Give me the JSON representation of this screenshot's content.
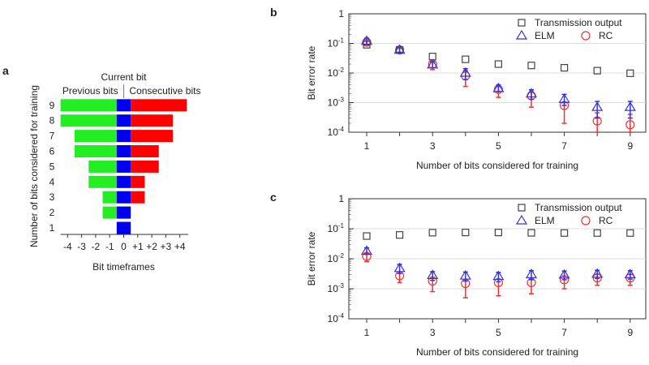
{
  "chart_data": [
    {
      "panel": "a",
      "type": "bar",
      "orientation": "horizontal-stacked",
      "header_center": "Current bit",
      "header_left": "Previous bits",
      "header_right": "Consecutive bits",
      "xlabel": "Bit timeframes",
      "ylabel": "Number of bits considered for training",
      "xticks": [
        "-4",
        "-3",
        "-2",
        "-1",
        "0",
        "+1",
        "+2",
        "+3",
        "+4"
      ],
      "categories": [
        "1",
        "2",
        "3",
        "4",
        "5",
        "6",
        "7",
        "8",
        "9"
      ],
      "previous_bits": [
        0,
        1,
        1,
        2,
        2,
        3,
        3,
        4,
        4
      ],
      "current_bit": [
        1,
        1,
        1,
        1,
        1,
        1,
        1,
        1,
        1
      ],
      "consecutive_bits": [
        0,
        0,
        1,
        1,
        2,
        2,
        3,
        3,
        4
      ],
      "colors": {
        "previous": "#22ee22",
        "current": "#0000ee",
        "consecutive": "#ff0000"
      }
    },
    {
      "panel": "b",
      "type": "scatter",
      "xlabel": "Number of bits considered for training",
      "ylabel": "Bit error rate",
      "yscale": "log",
      "ylim": [
        0.0001,
        1
      ],
      "yticks": [
        "10-4",
        "10-3",
        "10-2",
        "10-1",
        "1"
      ],
      "xticks": [
        "1",
        "3",
        "5",
        "7",
        "9"
      ],
      "x": [
        1,
        2,
        3,
        4,
        5,
        6,
        7,
        8,
        9
      ],
      "grid": "horizontal",
      "legend": "top-right",
      "series": [
        {
          "name": "Transmission output",
          "marker": "square",
          "color": "#444444",
          "values": [
            0.09,
            0.06,
            0.036,
            0.029,
            0.02,
            0.018,
            0.015,
            0.012,
            0.0098
          ]
        },
        {
          "name": "ELM",
          "marker": "triangle",
          "color": "#3333dd",
          "values": [
            0.12,
            0.06,
            0.019,
            0.01,
            0.003,
            0.002,
            0.0013,
            0.0007,
            0.0007
          ],
          "err_low": [
            0.09,
            0.05,
            0.015,
            0.006,
            0.0024,
            0.0013,
            0.0008,
            0.0003,
            0.0003
          ],
          "err_high": [
            0.15,
            0.07,
            0.023,
            0.014,
            0.004,
            0.0027,
            0.0019,
            0.0011,
            0.0011
          ]
        },
        {
          "name": "RC",
          "marker": "circle",
          "color": "#ee3333",
          "values": [
            0.11,
            0.06,
            0.02,
            0.008,
            0.0028,
            0.0017,
            0.0008,
            0.00024,
            0.00018
          ],
          "err_low": [
            0.09,
            0.05,
            0.013,
            0.0035,
            0.0015,
            0.0007,
            0.0002,
            0.0001,
            0.0001
          ],
          "err_high": [
            0.13,
            0.07,
            0.024,
            0.012,
            0.0035,
            0.0022,
            0.001,
            0.00045,
            0.0004
          ]
        }
      ]
    },
    {
      "panel": "c",
      "type": "scatter",
      "xlabel": "Number of bits considered for training",
      "ylabel": "Bit error rate",
      "yscale": "log",
      "ylim": [
        0.0001,
        1
      ],
      "yticks": [
        "10-4",
        "10-3",
        "10-2",
        "10-1",
        "1"
      ],
      "xticks": [
        "1",
        "3",
        "5",
        "7",
        "9"
      ],
      "x": [
        1,
        2,
        3,
        4,
        5,
        6,
        7,
        8,
        9
      ],
      "grid": "horizontal",
      "legend": "top-right",
      "series": [
        {
          "name": "Transmission output",
          "marker": "square",
          "color": "#444444",
          "values": [
            0.057,
            0.062,
            0.074,
            0.075,
            0.075,
            0.073,
            0.072,
            0.072,
            0.072
          ]
        },
        {
          "name": "ELM",
          "marker": "triangle",
          "color": "#3333dd",
          "values": [
            0.018,
            0.0048,
            0.0028,
            0.0027,
            0.0026,
            0.003,
            0.0029,
            0.0031,
            0.003
          ],
          "err_low": [
            0.014,
            0.0032,
            0.0019,
            0.0018,
            0.0017,
            0.002,
            0.002,
            0.0022,
            0.0021
          ],
          "err_high": [
            0.023,
            0.0065,
            0.0037,
            0.0036,
            0.0035,
            0.004,
            0.0039,
            0.0041,
            0.004
          ]
        },
        {
          "name": "RC",
          "marker": "circle",
          "color": "#ee3333",
          "values": [
            0.012,
            0.0027,
            0.0018,
            0.0015,
            0.0016,
            0.0016,
            0.002,
            0.0023,
            0.0023
          ],
          "err_low": [
            0.008,
            0.0016,
            0.0008,
            0.0005,
            0.00058,
            0.00068,
            0.001,
            0.0013,
            0.0013
          ],
          "err_high": [
            0.015,
            0.0036,
            0.0024,
            0.002,
            0.0021,
            0.0022,
            0.0026,
            0.003,
            0.003
          ]
        }
      ]
    }
  ]
}
